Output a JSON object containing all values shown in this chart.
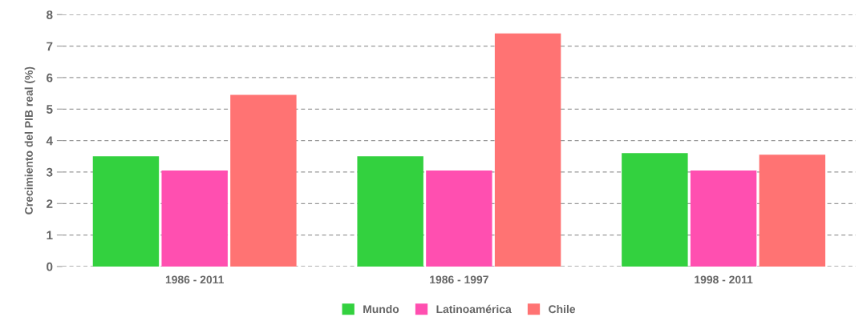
{
  "chart_data": {
    "type": "bar",
    "ylabel": "Crecimiento del PIB real (%)",
    "categories": [
      "1986 - 2011",
      "1986 - 1997",
      "1998 - 2011"
    ],
    "series": [
      {
        "name": "Mundo",
        "color": "#33d13f",
        "values": [
          3.5,
          3.5,
          3.6
        ]
      },
      {
        "name": "Latinoamérica",
        "color": "#ff4fb0",
        "values": [
          3.05,
          3.05,
          3.05
        ]
      },
      {
        "name": "Chile",
        "color": "#ff7373",
        "values": [
          5.45,
          7.4,
          3.55
        ]
      }
    ],
    "ylim": [
      0,
      8
    ],
    "yticks": [
      0,
      1,
      2,
      3,
      4,
      5,
      6,
      7,
      8
    ],
    "grid": "y",
    "legend": "bottom"
  }
}
